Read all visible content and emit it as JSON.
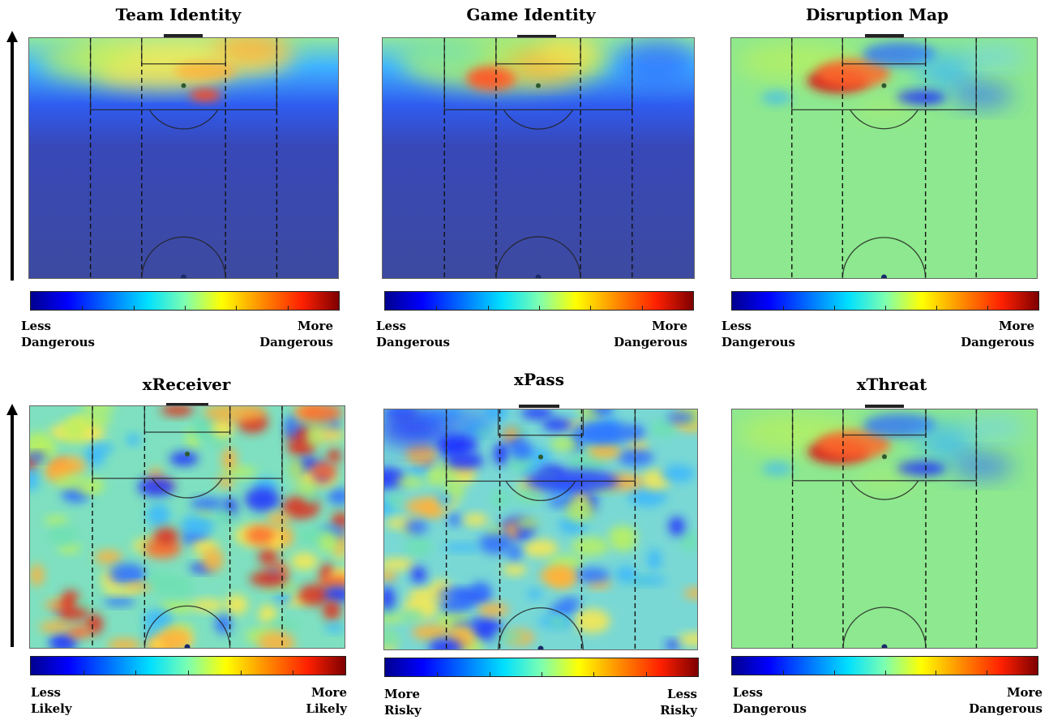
{
  "panels": [
    {
      "title": "Team Identity",
      "left_label": [
        "Less",
        "Dangerous"
      ],
      "right_label": [
        "More",
        "Dangerous"
      ],
      "colormap": "jet",
      "scale": "less-to-more-dangerous"
    },
    {
      "title": "Game Identity",
      "left_label": [
        "Less",
        "Dangerous"
      ],
      "right_label": [
        "More",
        "Dangerous"
      ],
      "colormap": "jet",
      "scale": "less-to-more-dangerous"
    },
    {
      "title": "Disruption Map",
      "left_label": [
        "Less",
        "Dangerous"
      ],
      "right_label": [
        "More",
        "Dangerous"
      ],
      "colormap": "jet",
      "scale": "less-to-more-dangerous"
    },
    {
      "title": "xReceiver",
      "left_label": [
        "Less",
        "Likely"
      ],
      "right_label": [
        "More",
        "Likely"
      ],
      "colormap": "jet",
      "scale": "less-to-more-likely"
    },
    {
      "title": "xPass",
      "left_label": [
        "More",
        "Risky"
      ],
      "right_label": [
        "Less",
        "Risky"
      ],
      "colormap": "jet",
      "scale": "more-to-less-risky"
    },
    {
      "title": "xThreat",
      "left_label": [
        "Less",
        "Dangerous"
      ],
      "right_label": [
        "More",
        "Dangerous"
      ],
      "colormap": "jet",
      "scale": "less-to-more-dangerous"
    }
  ],
  "colors": {
    "jet_stops": [
      "#00008f",
      "#0000ff",
      "#0070ff",
      "#00e0ff",
      "#7dffb0",
      "#ffff00",
      "#ff8c00",
      "#ff2000",
      "#7f0000"
    ],
    "line": "#111111",
    "background": "#ffffff"
  },
  "attack_direction": "up"
}
